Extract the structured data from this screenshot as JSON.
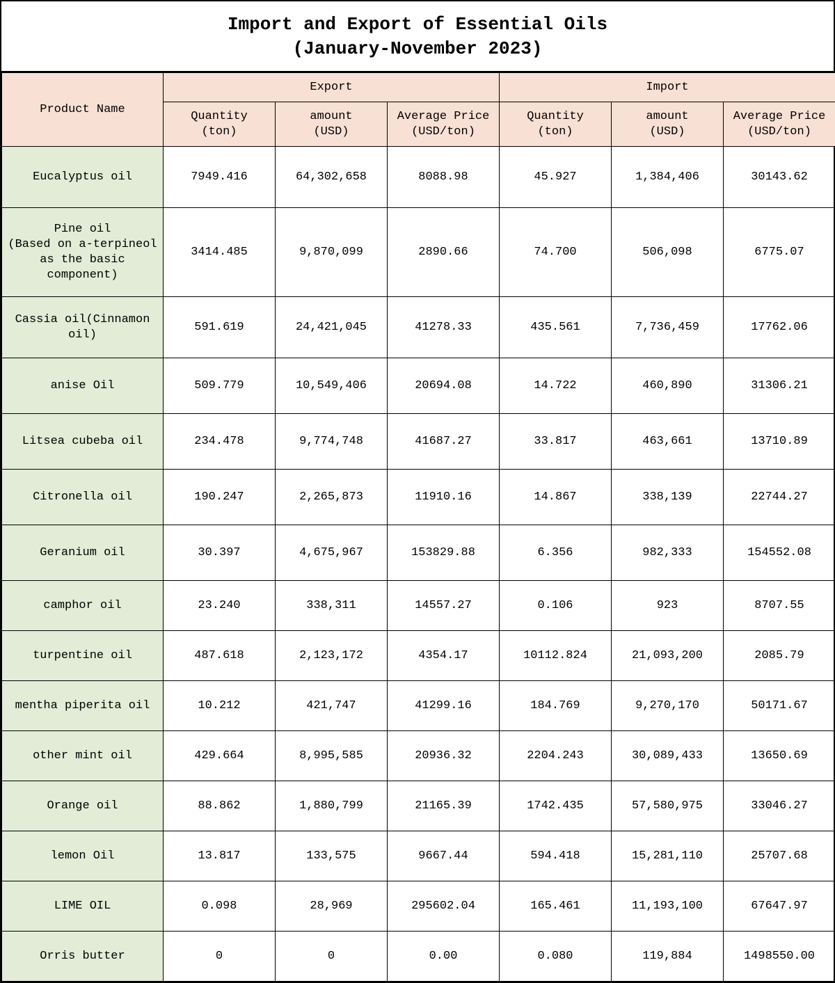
{
  "title": {
    "line1": "Import and Export of Essential Oils",
    "line2": "(January-November 2023)"
  },
  "headers": {
    "product": "Product Name",
    "export": "Export",
    "import": "Import",
    "qty": "Quantity",
    "qty_unit": "(ton)",
    "amt": "amount",
    "amt_unit": "(USD)",
    "avg": "Average Price",
    "avg_unit": "(USD/ton)"
  },
  "colors": {
    "header_bg": "#f9e0d4",
    "product_bg": "#e2ecd6",
    "border": "#000000",
    "page_bg": "#ffffff"
  },
  "rows": [
    {
      "name": "Eucalyptus oil",
      "eq": "7949.416",
      "ea": "64,302,658",
      "ep": "8088.98",
      "iq": "45.927",
      "ia": "1,384,406",
      "ip": "30143.62",
      "h": "h-lg"
    },
    {
      "name": "Pine oil\n(Based on a-terpineol as the basic component)",
      "eq": "3414.485",
      "ea": "9,870,099",
      "ep": "2890.66",
      "iq": "74.700",
      "ia": "506,098",
      "ip": "6775.07",
      "h": "h-xlg"
    },
    {
      "name": "Cassia oil(Cinnamon oil)",
      "eq": "591.619",
      "ea": "24,421,045",
      "ep": "41278.33",
      "iq": "435.561",
      "ia": "7,736,459",
      "ip": "17762.06",
      "h": "h-lg"
    },
    {
      "name": "anise Oil",
      "eq": "509.779",
      "ea": "10,549,406",
      "ep": "20694.08",
      "iq": "14.722",
      "ia": "460,890",
      "ip": "31306.21",
      "h": "h-md"
    },
    {
      "name": "Litsea cubeba oil",
      "eq": "234.478",
      "ea": "9,774,748",
      "ep": "41687.27",
      "iq": "33.817",
      "ia": "463,661",
      "ip": "13710.89",
      "h": "h-md"
    },
    {
      "name": "Citronella oil",
      "eq": "190.247",
      "ea": "2,265,873",
      "ep": "11910.16",
      "iq": "14.867",
      "ia": "338,139",
      "ip": "22744.27",
      "h": "h-md"
    },
    {
      "name": "Geranium oil",
      "eq": "30.397",
      "ea": "4,675,967",
      "ep": "153829.88",
      "iq": "6.356",
      "ia": "982,333",
      "ip": "154552.08",
      "h": "h-md"
    },
    {
      "name": "camphor oil",
      "eq": "23.240",
      "ea": "338,311",
      "ep": "14557.27",
      "iq": "0.106",
      "ia": "923",
      "ip": "8707.55",
      "h": "h-sm"
    },
    {
      "name": "turpentine oil",
      "eq": "487.618",
      "ea": "2,123,172",
      "ep": "4354.17",
      "iq": "10112.824",
      "ia": "21,093,200",
      "ip": "2085.79",
      "h": "h-sm"
    },
    {
      "name": "mentha piperita oil",
      "eq": "10.212",
      "ea": "421,747",
      "ep": "41299.16",
      "iq": "184.769",
      "ia": "9,270,170",
      "ip": "50171.67",
      "h": "h-sm"
    },
    {
      "name": "other mint oil",
      "eq": "429.664",
      "ea": "8,995,585",
      "ep": "20936.32",
      "iq": "2204.243",
      "ia": "30,089,433",
      "ip": "13650.69",
      "h": "h-sm"
    },
    {
      "name": "Orange oil",
      "eq": "88.862",
      "ea": "1,880,799",
      "ep": "21165.39",
      "iq": "1742.435",
      "ia": "57,580,975",
      "ip": "33046.27",
      "h": "h-sm"
    },
    {
      "name": "lemon Oil",
      "eq": "13.817",
      "ea": "133,575",
      "ep": "9667.44",
      "iq": "594.418",
      "ia": "15,281,110",
      "ip": "25707.68",
      "h": "h-sm"
    },
    {
      "name": "LIME OIL",
      "eq": "0.098",
      "ea": "28,969",
      "ep": "295602.04",
      "iq": "165.461",
      "ia": "11,193,100",
      "ip": "67647.97",
      "h": "h-sm"
    },
    {
      "name": "Orris butter",
      "eq": "0",
      "ea": "0",
      "ep": "0.00",
      "iq": "0.080",
      "ia": "119,884",
      "ip": "1498550.00",
      "h": "h-sm"
    }
  ]
}
